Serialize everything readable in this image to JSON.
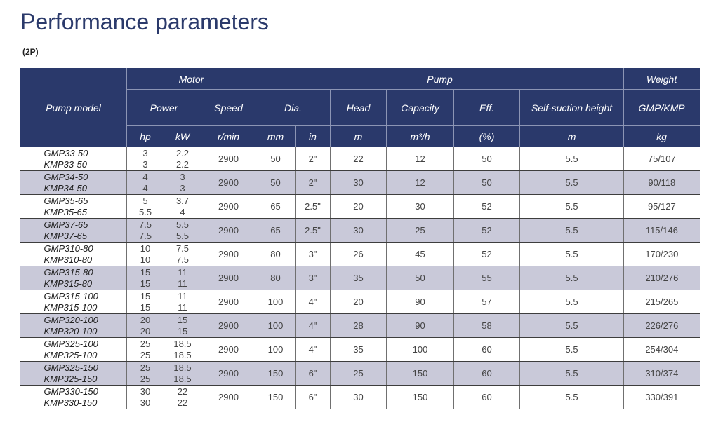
{
  "page": {
    "title": "Performance parameters",
    "subtitle": "(2P)"
  },
  "colors": {
    "header_bg": "#2a396b",
    "shaded_row": "#c9c9d9",
    "title": "#2b3a6b"
  },
  "table": {
    "header": {
      "pump_model": "Pump model",
      "motor": "Motor",
      "pump": "Pump",
      "weight": "Weight",
      "power": "Power",
      "speed": "Speed",
      "dia": "Dia.",
      "head": "Head",
      "capacity": "Capacity",
      "eff": "Eff.",
      "self_suction_height": "Self-suction height",
      "gmp_kmp": "GMP/KMP",
      "units": {
        "hp": "hp",
        "kw": "kW",
        "speed": "r/min",
        "dia_mm": "mm",
        "dia_in": "in",
        "head": "m",
        "capacity": "m³/h",
        "eff": "(%)",
        "self_suction": "m",
        "weight": "kg"
      }
    },
    "rows": [
      {
        "models": [
          "GMP33-50",
          "KMP33-50"
        ],
        "hp": [
          "3",
          "3"
        ],
        "kw": [
          "2.2",
          "2.2"
        ],
        "speed": "2900",
        "dia_mm": "50",
        "dia_in": "2\"",
        "head": "22",
        "capacity": "12",
        "eff": "50",
        "self_suction": "5.5",
        "weight": "75/107"
      },
      {
        "models": [
          "GMP34-50",
          "KMP34-50"
        ],
        "hp": [
          "4",
          "4"
        ],
        "kw": [
          "3",
          "3"
        ],
        "speed": "2900",
        "dia_mm": "50",
        "dia_in": "2\"",
        "head": "30",
        "capacity": "12",
        "eff": "50",
        "self_suction": "5.5",
        "weight": "90/118"
      },
      {
        "models": [
          "GMP35-65",
          "KMP35-65"
        ],
        "hp": [
          "5",
          "5.5"
        ],
        "kw": [
          "3.7",
          "4"
        ],
        "speed": "2900",
        "dia_mm": "65",
        "dia_in": "2.5\"",
        "head": "20",
        "capacity": "30",
        "eff": "52",
        "self_suction": "5.5",
        "weight": "95/127"
      },
      {
        "models": [
          "GMP37-65",
          "KMP37-65"
        ],
        "hp": [
          "7.5",
          "7.5"
        ],
        "kw": [
          "5.5",
          "5.5"
        ],
        "speed": "2900",
        "dia_mm": "65",
        "dia_in": "2.5\"",
        "head": "30",
        "capacity": "25",
        "eff": "52",
        "self_suction": "5.5",
        "weight": "115/146"
      },
      {
        "models": [
          "GMP310-80",
          "KMP310-80"
        ],
        "hp": [
          "10",
          "10"
        ],
        "kw": [
          "7.5",
          "7.5"
        ],
        "speed": "2900",
        "dia_mm": "80",
        "dia_in": "3\"",
        "head": "26",
        "capacity": "45",
        "eff": "52",
        "self_suction": "5.5",
        "weight": "170/230"
      },
      {
        "models": [
          "GMP315-80",
          "KMP315-80"
        ],
        "hp": [
          "15",
          "15"
        ],
        "kw": [
          "11",
          "11"
        ],
        "speed": "2900",
        "dia_mm": "80",
        "dia_in": "3\"",
        "head": "35",
        "capacity": "50",
        "eff": "55",
        "self_suction": "5.5",
        "weight": "210/276"
      },
      {
        "models": [
          "GMP315-100",
          "KMP315-100"
        ],
        "hp": [
          "15",
          "15"
        ],
        "kw": [
          "11",
          "11"
        ],
        "speed": "2900",
        "dia_mm": "100",
        "dia_in": "4\"",
        "head": "20",
        "capacity": "90",
        "eff": "57",
        "self_suction": "5.5",
        "weight": "215/265"
      },
      {
        "models": [
          "GMP320-100",
          "KMP320-100"
        ],
        "hp": [
          "20",
          "20"
        ],
        "kw": [
          "15",
          "15"
        ],
        "speed": "2900",
        "dia_mm": "100",
        "dia_in": "4\"",
        "head": "28",
        "capacity": "90",
        "eff": "58",
        "self_suction": "5.5",
        "weight": "226/276"
      },
      {
        "models": [
          "GMP325-100",
          "KMP325-100"
        ],
        "hp": [
          "25",
          "25"
        ],
        "kw": [
          "18.5",
          "18.5"
        ],
        "speed": "2900",
        "dia_mm": "100",
        "dia_in": "4\"",
        "head": "35",
        "capacity": "100",
        "eff": "60",
        "self_suction": "5.5",
        "weight": "254/304"
      },
      {
        "models": [
          "GMP325-150",
          "KMP325-150"
        ],
        "hp": [
          "25",
          "25"
        ],
        "kw": [
          "18.5",
          "18.5"
        ],
        "speed": "2900",
        "dia_mm": "150",
        "dia_in": "6\"",
        "head": "25",
        "capacity": "150",
        "eff": "60",
        "self_suction": "5.5",
        "weight": "310/374"
      },
      {
        "models": [
          "GMP330-150",
          "KMP330-150"
        ],
        "hp": [
          "30",
          "30"
        ],
        "kw": [
          "22",
          "22"
        ],
        "speed": "2900",
        "dia_mm": "150",
        "dia_in": "6\"",
        "head": "30",
        "capacity": "150",
        "eff": "60",
        "self_suction": "5.5",
        "weight": "330/391"
      }
    ]
  }
}
